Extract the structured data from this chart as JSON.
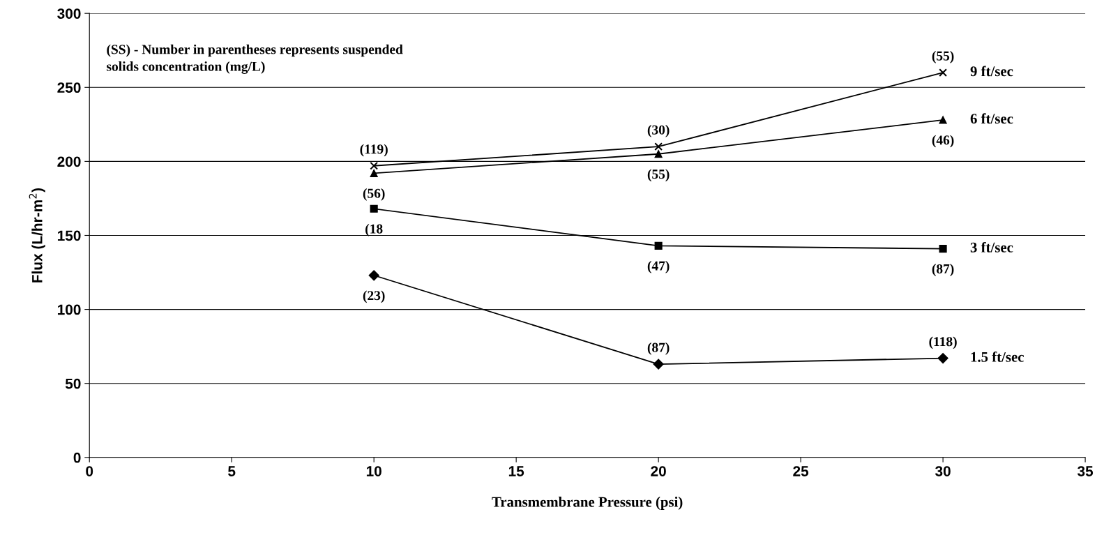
{
  "chart_data": {
    "type": "line",
    "xlabel": "Transmembrane Pressure (psi)",
    "ylabel": "Flux (L/hr-m$^{2}$)",
    "xlim": [
      0,
      35
    ],
    "xticks": [
      0,
      5,
      10,
      15,
      20,
      25,
      30,
      35
    ],
    "ylim": [
      0,
      300
    ],
    "yticks": [
      0,
      50,
      100,
      150,
      200,
      250,
      300
    ],
    "grid": "y",
    "legend": false,
    "line_style": "solid",
    "series": [
      {
        "name": "9 ft/sec",
        "color": "#000000",
        "marker": "cross",
        "x": [
          10,
          20,
          30
        ],
        "values": [
          197,
          210,
          260
        ]
      },
      {
        "name": "6 ft/sec",
        "color": "#000000",
        "marker": "triangle",
        "x": [
          10,
          20,
          30
        ],
        "values": [
          192,
          205,
          228
        ]
      },
      {
        "name": "3 ft/sec",
        "color": "#000000",
        "marker": "square",
        "x": [
          10,
          20,
          30
        ],
        "values": [
          168,
          143,
          141
        ]
      },
      {
        "name": "1.5 ft/sec",
        "color": "#000000",
        "marker": "diamond",
        "x": [
          10,
          20,
          30
        ],
        "values": [
          123,
          63,
          67
        ]
      }
    ],
    "annotations": [
      "(SS) - Number in parentheses represents suspended\nsolids concentration (mg/L)",
      {
        "text": "(119)",
        "x": 10,
        "y": 197
      },
      {
        "text": "(30)",
        "x": 20,
        "y": 210
      },
      {
        "text": "(55)",
        "x": 30,
        "y": 260
      },
      {
        "text": "(56)",
        "x": 10,
        "y": 192
      },
      {
        "text": "(55)",
        "x": 20,
        "y": 205
      },
      {
        "text": "(46)",
        "x": 30,
        "y": 228
      },
      {
        "text": "(18",
        "x": 10,
        "y": 168
      },
      {
        "text": "(47)",
        "x": 20,
        "y": 143
      },
      {
        "text": "(87)",
        "x": 30,
        "y": 141
      },
      {
        "text": "(23)",
        "x": 10,
        "y": 123
      },
      {
        "text": "(87)",
        "x": 20,
        "y": 63
      },
      {
        "text": "(118)",
        "x": 30,
        "y": 67
      }
    ]
  }
}
